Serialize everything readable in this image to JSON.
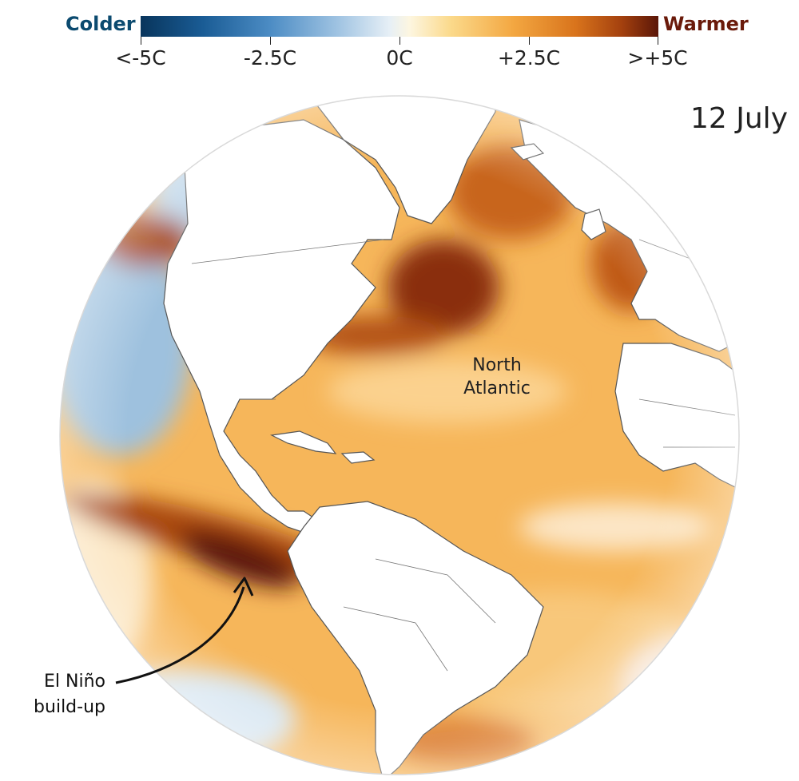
{
  "legend": {
    "colder": "Colder",
    "warmer": "Warmer",
    "ticks": [
      "<-5C",
      "-2.5C",
      "0C",
      "+2.5C",
      ">+5C"
    ]
  },
  "date": "12 July",
  "labels": {
    "north_atlantic": [
      "North",
      "Atlantic"
    ],
    "el_nino": [
      "El Niño",
      "build-up"
    ]
  },
  "colors": {
    "cold": "#1a5c95",
    "neutral": "#ffffff",
    "warm": "#f3a741",
    "hot": "#5a1608"
  }
}
